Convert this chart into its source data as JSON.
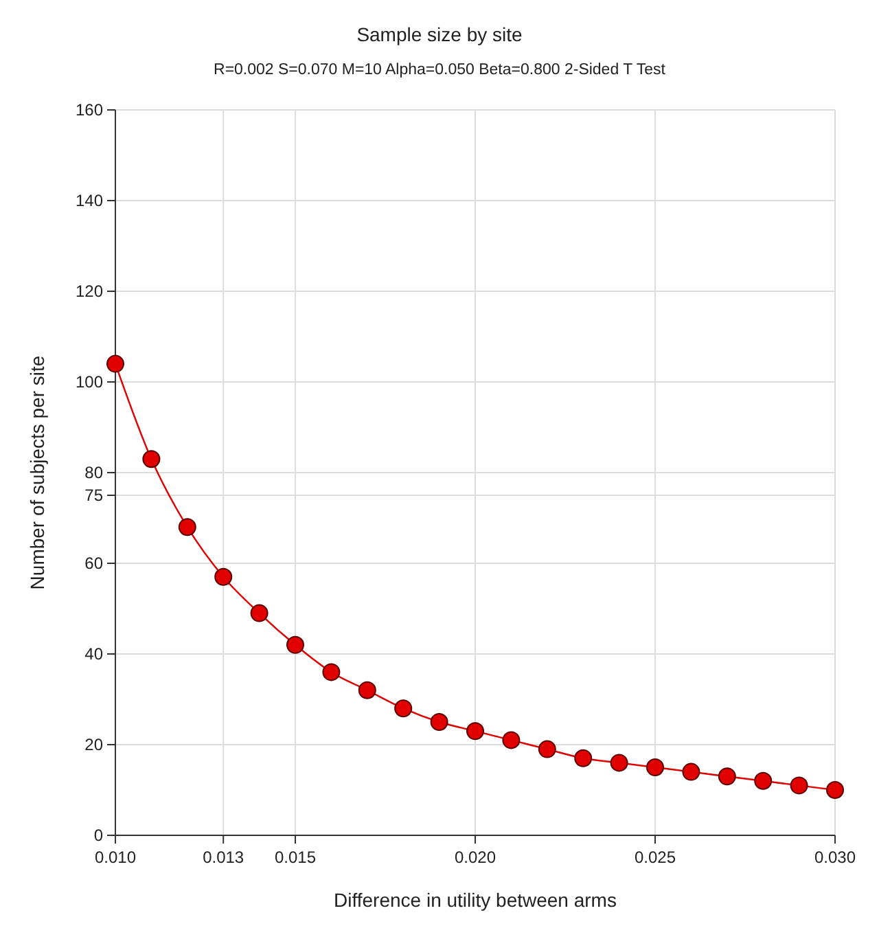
{
  "chart_data": {
    "type": "line",
    "title": "Sample size by site",
    "subtitle": "R=0.002 S=0.070 M=10 Alpha=0.050 Beta=0.800 2-Sided T Test",
    "xlabel": "Difference in utility between arms",
    "ylabel": "Number of subjects per site",
    "x": [
      0.01,
      0.011,
      0.012,
      0.013,
      0.014,
      0.015,
      0.016,
      0.017,
      0.018,
      0.019,
      0.02,
      0.021,
      0.022,
      0.023,
      0.024,
      0.025,
      0.026,
      0.027,
      0.028,
      0.029,
      0.03
    ],
    "series": [
      {
        "color": "#e00000",
        "values": [
          104,
          83,
          68,
          57,
          49,
          42,
          36,
          32,
          28,
          25,
          23,
          21,
          19,
          17,
          16,
          15,
          14,
          13,
          12,
          11,
          10
        ]
      }
    ],
    "xlim": [
      0.01,
      0.03
    ],
    "xticks": [
      {
        "value": 0.01,
        "label": "0.010"
      },
      {
        "value": 0.013,
        "label": "0.013"
      },
      {
        "value": 0.015,
        "label": "0.015"
      },
      {
        "value": 0.02,
        "label": "0.020"
      },
      {
        "value": 0.025,
        "label": "0.025"
      },
      {
        "value": 0.03,
        "label": "0.030"
      }
    ],
    "ylim": [
      0,
      160
    ],
    "yticks": [
      0,
      20,
      40,
      60,
      75,
      80,
      100,
      120,
      140,
      160
    ],
    "grid": true,
    "marker": "circle",
    "line_style": "solid"
  }
}
